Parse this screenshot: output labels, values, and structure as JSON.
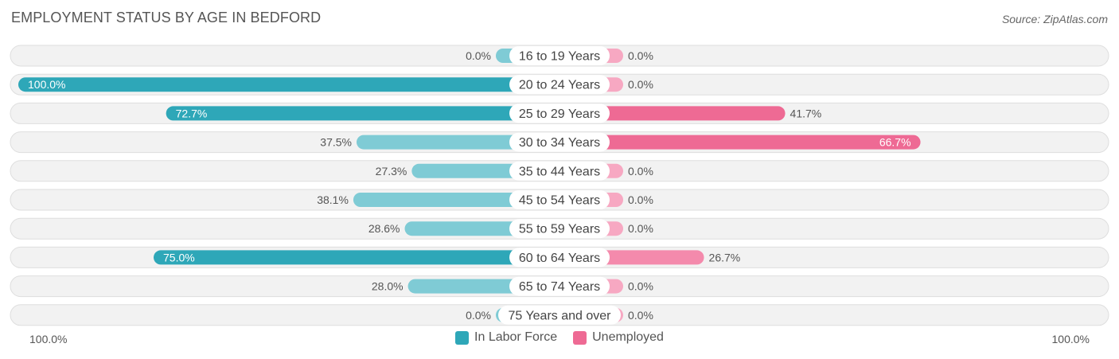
{
  "title": "EMPLOYMENT STATUS BY AGE IN BEDFORD",
  "source": "Source: ZipAtlas.com",
  "chart_data": {
    "type": "bar",
    "orientation": "horizontal-diverging",
    "categories": [
      "16 to 19 Years",
      "20 to 24 Years",
      "25 to 29 Years",
      "30 to 34 Years",
      "35 to 44 Years",
      "45 to 54 Years",
      "55 to 59 Years",
      "60 to 64 Years",
      "65 to 74 Years",
      "75 Years and over"
    ],
    "series": [
      {
        "name": "In Labor Force",
        "values": [
          0.0,
          100.0,
          72.7,
          37.5,
          27.3,
          38.1,
          28.6,
          75.0,
          28.0,
          0.0
        ],
        "labels": [
          "0.0%",
          "100.0%",
          "72.7%",
          "37.5%",
          "27.3%",
          "38.1%",
          "28.6%",
          "75.0%",
          "28.0%",
          "0.0%"
        ],
        "color": "#2ea7b8",
        "light_color": "#7fcbd5"
      },
      {
        "name": "Unemployed",
        "values": [
          0.0,
          0.0,
          41.7,
          66.7,
          0.0,
          0.0,
          0.0,
          26.7,
          0.0,
          0.0
        ],
        "labels": [
          "0.0%",
          "0.0%",
          "41.7%",
          "66.7%",
          "0.0%",
          "0.0%",
          "0.0%",
          "26.7%",
          "0.0%",
          "0.0%"
        ],
        "color": "#ee6a94",
        "light_color": "#f7a8c2"
      }
    ],
    "xlim": [
      -100,
      100
    ],
    "axis_left_label": "100.0%",
    "axis_right_label": "100.0%",
    "legend_position": "bottom-center"
  }
}
